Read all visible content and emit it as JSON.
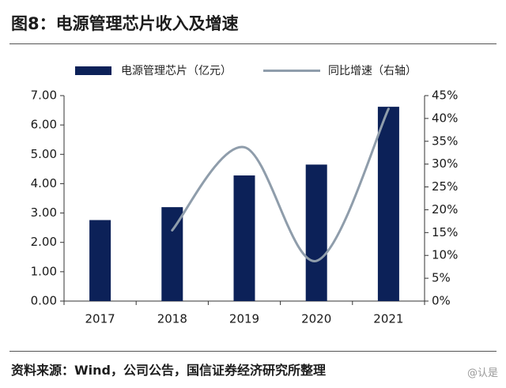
{
  "header": {
    "title": "图8：电源管理芯片收入及增速"
  },
  "footer": {
    "source": "资料来源：Wind，公司公告，国信证券经济研究所整理",
    "watermark": "@认是"
  },
  "colors": {
    "bar": "#0c2158",
    "line": "#8f9dab",
    "axis": "#333333"
  },
  "chart_data": {
    "type": "bar",
    "title": "",
    "categories": [
      "2017",
      "2018",
      "2019",
      "2020",
      "2021"
    ],
    "series": [
      {
        "name": "电源管理芯片（亿元）",
        "type": "bar",
        "axis": "left",
        "values": [
          2.76,
          3.2,
          4.28,
          4.65,
          6.62
        ]
      },
      {
        "name": "同比增速（右轴）",
        "type": "line",
        "axis": "right",
        "smooth": true,
        "values": [
          null,
          0.155,
          0.337,
          0.088,
          0.421
        ]
      }
    ],
    "left_axis": {
      "min": 0,
      "max": 7,
      "ticks": [
        "0.00",
        "1.00",
        "2.00",
        "3.00",
        "4.00",
        "5.00",
        "6.00",
        "7.00"
      ]
    },
    "right_axis": {
      "min": 0,
      "max": 0.45,
      "ticks": [
        "0%",
        "5%",
        "10%",
        "15%",
        "20%",
        "25%",
        "30%",
        "35%",
        "40%",
        "45%"
      ]
    },
    "legend": "top",
    "grid": false
  }
}
